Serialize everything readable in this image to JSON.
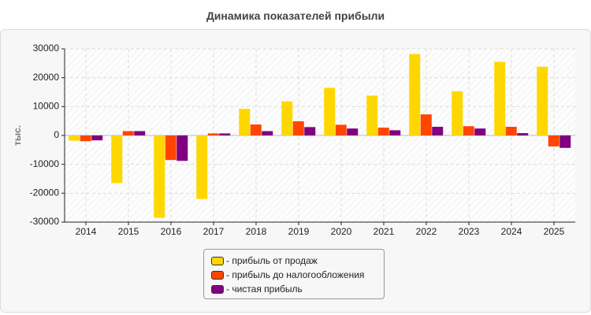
{
  "title": "Динамика показателей прибыли",
  "chart_data": {
    "type": "bar",
    "title": "Динамика показателей прибыли",
    "ylabel": "тыс.",
    "xlabel": "",
    "ylim": [
      -30000,
      30000
    ],
    "yticks": [
      30000,
      20000,
      10000,
      0,
      -10000,
      -20000,
      -30000
    ],
    "grid": true,
    "legend_position": "bottom-center",
    "categories": [
      "2014",
      "2015",
      "2016",
      "2017",
      "2018",
      "2019",
      "2020",
      "2021",
      "2022",
      "2023",
      "2024",
      "2025"
    ],
    "series": [
      {
        "name": "- прибыль от продаж",
        "color": "#FFD700",
        "values": [
          -1800,
          -16500,
          -28500,
          -22000,
          9200,
          11800,
          16500,
          13800,
          28200,
          15300,
          25500,
          23800
        ]
      },
      {
        "name": "- прибыль до налогообложения",
        "color": "#FF4500",
        "values": [
          -2000,
          1500,
          -8500,
          700,
          3800,
          4900,
          3700,
          2700,
          7300,
          3200,
          3000,
          -3800
        ]
      },
      {
        "name": "- чистая прибыль",
        "color": "#800080",
        "values": [
          -1700,
          1500,
          -8800,
          700,
          1500,
          2900,
          2400,
          1800,
          3000,
          2400,
          800,
          -4300
        ]
      }
    ]
  }
}
